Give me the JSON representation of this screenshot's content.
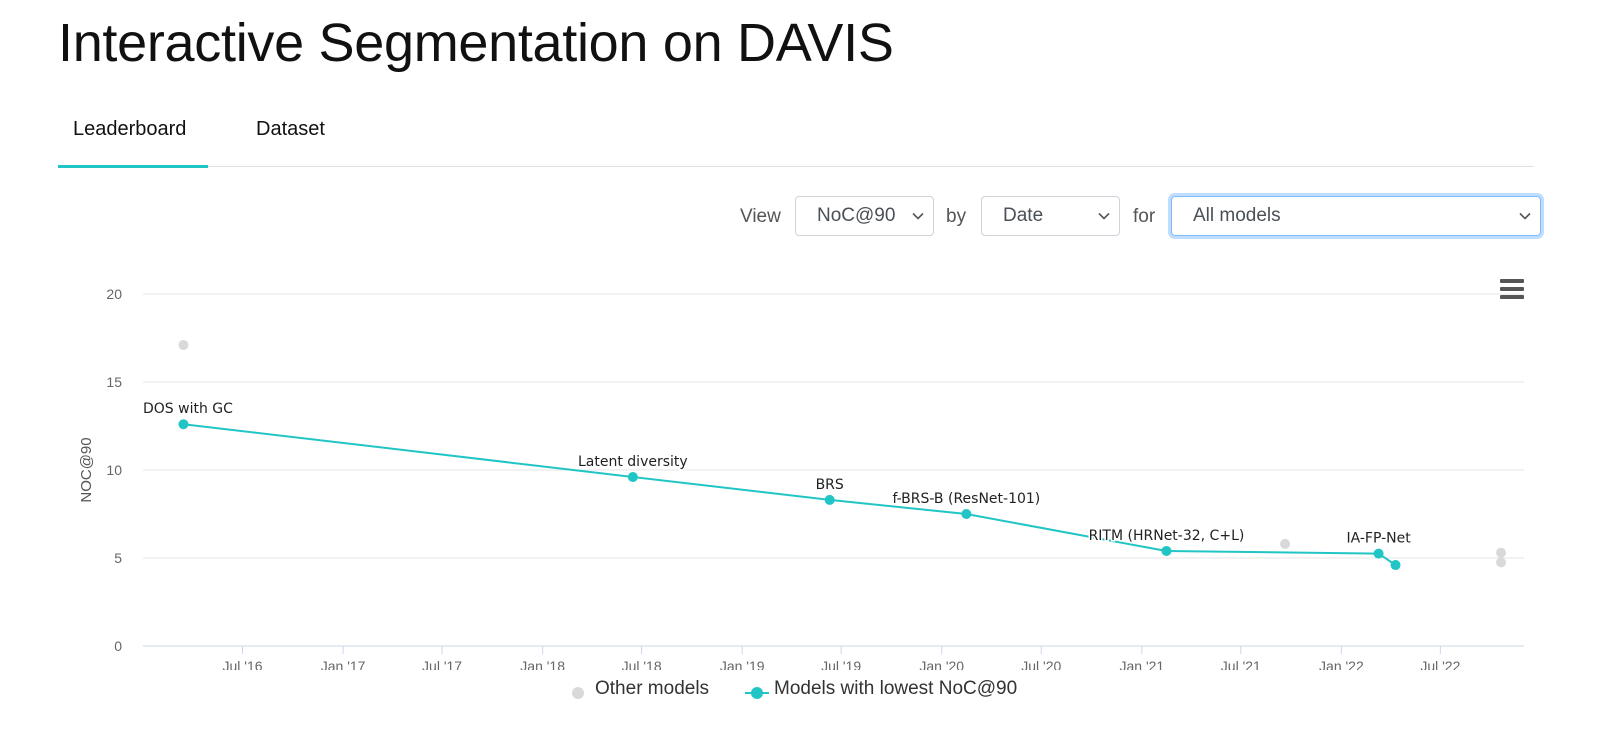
{
  "page": {
    "title": "Interactive Segmentation on DAVIS"
  },
  "tabs": [
    {
      "label": "Leaderboard",
      "active": true
    },
    {
      "label": "Dataset",
      "active": false
    }
  ],
  "controls": {
    "view_label": "View",
    "metric_value": "NoC@90",
    "by_label": "by",
    "sort_value": "Date",
    "for_label": "for",
    "filter_value": "All models"
  },
  "colors": {
    "accent": "#21c5c5",
    "other_models": "#d9d9d9"
  },
  "chart_menu": {
    "icon": "hamburger-menu-icon"
  },
  "chart_data": {
    "type": "scatter",
    "title": "",
    "xlabel": "",
    "ylabel": "NOC@90",
    "x_axis_type": "date",
    "x_range": [
      "2016-01-01",
      "2022-12-01"
    ],
    "ylim": [
      0,
      20
    ],
    "y_ticks": [
      0,
      5,
      10,
      15,
      20
    ],
    "x_ticks": [
      {
        "date": "2016-07-01",
        "label": "Jul '16"
      },
      {
        "date": "2017-01-01",
        "label": "Jan '17"
      },
      {
        "date": "2017-07-01",
        "label": "Jul '17"
      },
      {
        "date": "2018-01-01",
        "label": "Jan '18"
      },
      {
        "date": "2018-07-01",
        "label": "Jul '18"
      },
      {
        "date": "2019-01-01",
        "label": "Jan '19"
      },
      {
        "date": "2019-07-01",
        "label": "Jul '19"
      },
      {
        "date": "2020-01-01",
        "label": "Jan '20"
      },
      {
        "date": "2020-07-01",
        "label": "Jul '20"
      },
      {
        "date": "2021-01-01",
        "label": "Jan '21"
      },
      {
        "date": "2021-07-01",
        "label": "Jul '21"
      },
      {
        "date": "2022-01-01",
        "label": "Jan '22"
      },
      {
        "date": "2022-07-01",
        "label": "Jul '22"
      }
    ],
    "grid": true,
    "legend_position": "bottom-center",
    "series": [
      {
        "name": "Other models",
        "color": "#d9d9d9",
        "points": [
          {
            "date": "2016-03-15",
            "value": 17.1
          },
          {
            "date": "2021-09-20",
            "value": 5.8
          },
          {
            "date": "2022-10-20",
            "value": 5.3
          },
          {
            "date": "2022-10-20",
            "value": 4.75
          }
        ]
      },
      {
        "name": "Models with lowest NoC@90",
        "color": "#21c5c5",
        "connected": true,
        "points": [
          {
            "date": "2016-03-15",
            "value": 12.6,
            "label": "DOS with GC"
          },
          {
            "date": "2018-06-15",
            "value": 9.6,
            "label": "Latent diversity"
          },
          {
            "date": "2019-06-10",
            "value": 8.3,
            "label": "BRS"
          },
          {
            "date": "2020-02-15",
            "value": 7.5,
            "label": "f-BRS-B (ResNet-101)"
          },
          {
            "date": "2021-02-15",
            "value": 5.4,
            "label": "RITM (HRNet-32, C+L)"
          },
          {
            "date": "2022-03-10",
            "value": 5.25,
            "label": "IA-FP-Net"
          },
          {
            "date": "2022-04-10",
            "value": 4.6
          }
        ]
      }
    ]
  }
}
